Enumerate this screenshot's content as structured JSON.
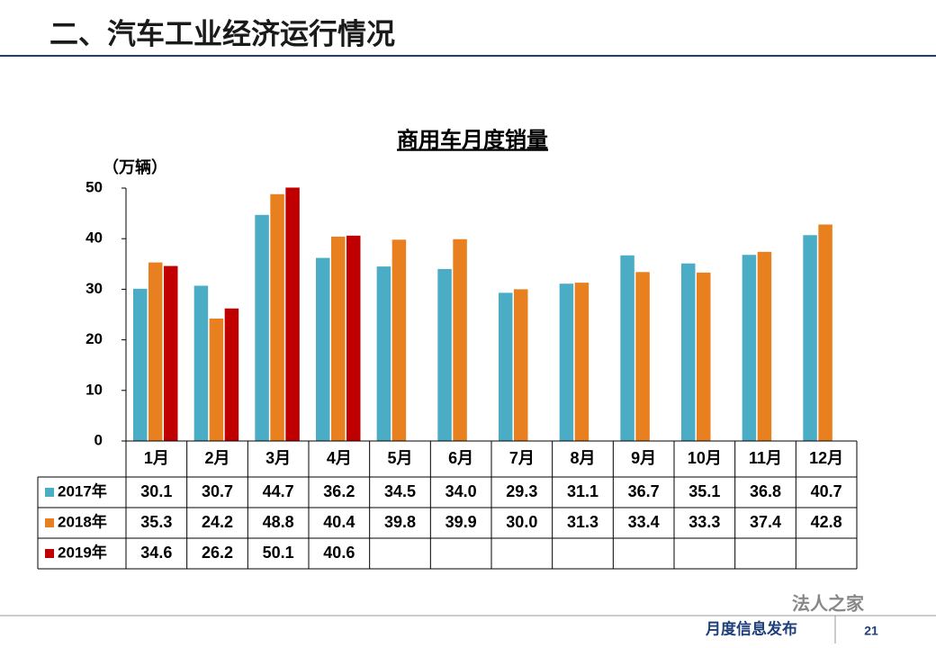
{
  "header": {
    "title": "二、汽车工业经济运行情况"
  },
  "chart_data": {
    "type": "bar",
    "title": "商用车月度销量",
    "y_label": "（万辆）",
    "categories": [
      "1月",
      "2月",
      "3月",
      "4月",
      "5月",
      "6月",
      "7月",
      "8月",
      "9月",
      "10月",
      "11月",
      "12月"
    ],
    "series": [
      {
        "name": "2017年",
        "color": "#4bacc6",
        "values": [
          30.1,
          30.7,
          44.7,
          36.2,
          34.5,
          34.0,
          29.3,
          31.1,
          36.7,
          35.1,
          36.8,
          40.7
        ],
        "value_labels": [
          "30.1",
          "30.7",
          "44.7",
          "36.2",
          "34.5",
          "34.0",
          "29.3",
          "31.1",
          "36.7",
          "35.1",
          "36.8",
          "40.7"
        ]
      },
      {
        "name": "2018年",
        "color": "#e8801f",
        "values": [
          35.3,
          24.2,
          48.8,
          40.4,
          39.8,
          39.9,
          30.0,
          31.3,
          33.4,
          33.3,
          37.4,
          42.8
        ],
        "value_labels": [
          "35.3",
          "24.2",
          "48.8",
          "40.4",
          "39.8",
          "39.9",
          "30.0",
          "31.3",
          "33.4",
          "33.3",
          "37.4",
          "42.8"
        ]
      },
      {
        "name": "2019年",
        "color": "#c00000",
        "values": [
          34.6,
          26.2,
          50.1,
          40.6,
          null,
          null,
          null,
          null,
          null,
          null,
          null,
          null
        ],
        "value_labels": [
          "34.6",
          "26.2",
          "50.1",
          "40.6",
          null,
          null,
          null,
          null,
          null,
          null,
          null,
          null
        ]
      }
    ],
    "ylim": [
      0,
      50
    ],
    "yticks": [
      0,
      10,
      20,
      30,
      40,
      50
    ],
    "grid": false
  },
  "watermark": "法人之家",
  "footer": {
    "text": "月度信息发布",
    "page": "21"
  }
}
